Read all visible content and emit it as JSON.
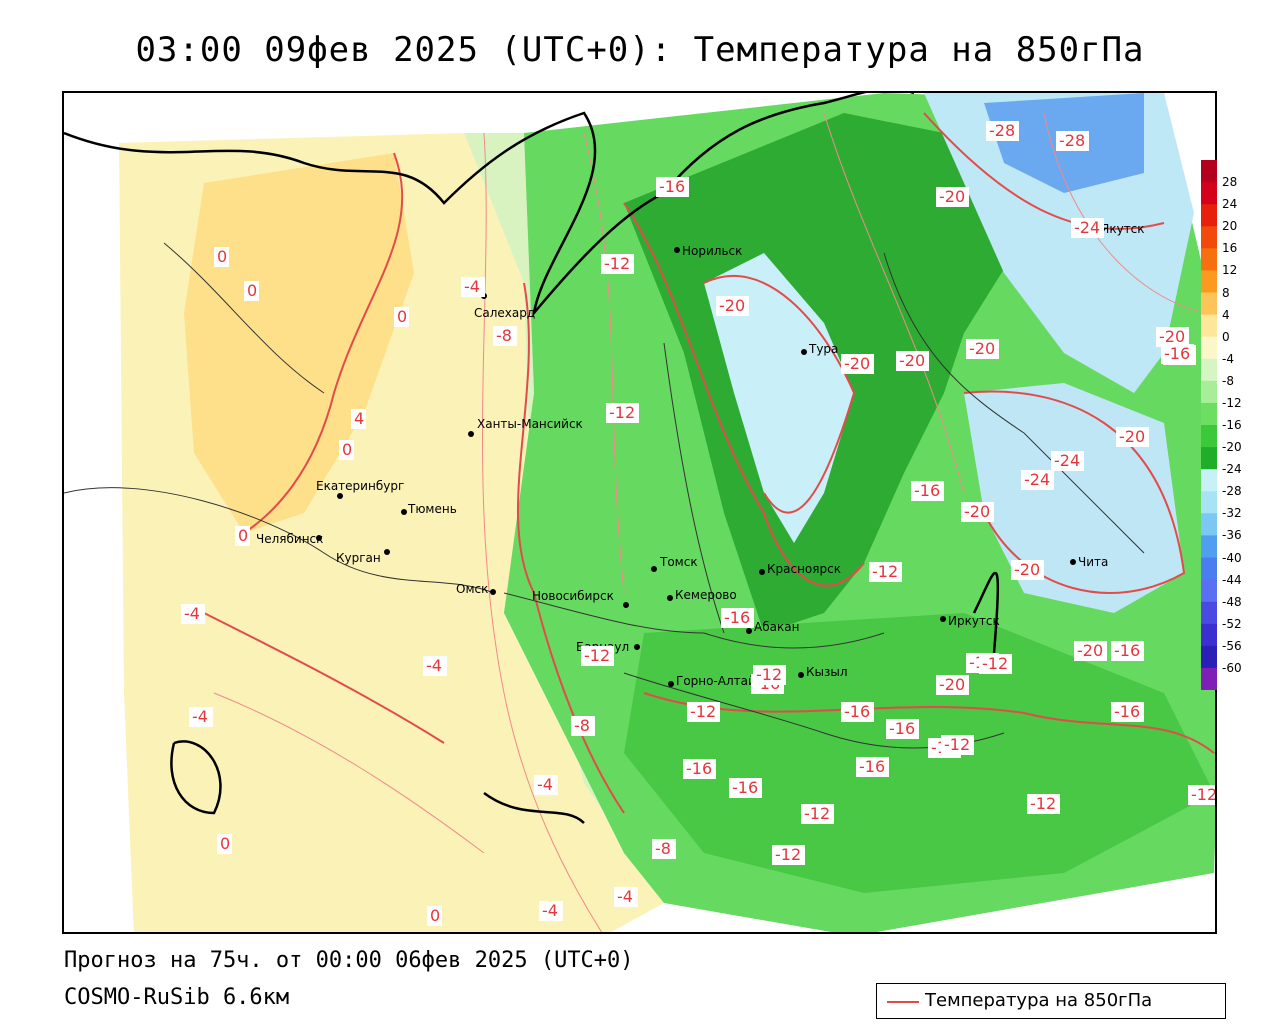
{
  "title": "03:00 09фев 2025 (UTC+0): Температура на 850гПа",
  "forecast": "Прогноз на 75ч. от 00:00 06фев 2025 (UTC+0)",
  "model": "COSMO-RuSib 6.6км",
  "legend": {
    "label": "Температура на 850гПа",
    "line_color": "#e34b4b"
  },
  "scale": {
    "labels": [
      "28",
      "24",
      "20",
      "16",
      "12",
      "8",
      "4",
      "0",
      "-4",
      "-8",
      "-12",
      "-16",
      "-20",
      "-24",
      "-28",
      "-32",
      "-36",
      "-40",
      "-44",
      "-48",
      "-52",
      "-56",
      "-60"
    ],
    "colors": [
      "#b3001e",
      "#d4001a",
      "#e6200a",
      "#f24a0a",
      "#f7700f",
      "#fb9a1e",
      "#fdc45a",
      "#fee79a",
      "#fbf7c9",
      "#d5f5c2",
      "#a8ee98",
      "#6cdf62",
      "#3bc93b",
      "#1fae2a",
      "#c7f0f7",
      "#a6e3f5",
      "#7cc8f2",
      "#4f9eef",
      "#4a7df0",
      "#5b6ff2",
      "#4a49e4",
      "#3b2fd1",
      "#2c1fb5",
      "#7f1fb5"
    ]
  },
  "cities": [
    {
      "name": "Норильск"
    },
    {
      "name": "Салехард"
    },
    {
      "name": "Тура"
    },
    {
      "name": "Якутск"
    },
    {
      "name": "Ханты-Мансийск"
    },
    {
      "name": "Екатеринбург"
    },
    {
      "name": "Тюмень"
    },
    {
      "name": "Челябинск"
    },
    {
      "name": "Курган"
    },
    {
      "name": "Омск"
    },
    {
      "name": "Томск"
    },
    {
      "name": "Красноярск"
    },
    {
      "name": "Новосибирск"
    },
    {
      "name": "Кемерово"
    },
    {
      "name": "Абакан"
    },
    {
      "name": "Барнаул"
    },
    {
      "name": "Иркутск"
    },
    {
      "name": "Чита"
    },
    {
      "name": "Кызыл"
    },
    {
      "name": "Горно-Алтайск"
    }
  ],
  "contour_labels": [
    "-28",
    "-28",
    "-24",
    "-20",
    "-16",
    "-12",
    "-20",
    "-20",
    "-20",
    "-20",
    "-20",
    "-16",
    "-20",
    "-4",
    "-8",
    "0",
    "0",
    "0",
    "4",
    "0",
    "0",
    "-12",
    "-16",
    "-20",
    "-24",
    "-24",
    "-20",
    "-16",
    "-12",
    "-12",
    "-16",
    "-4",
    "-4",
    "-4",
    "-12",
    "-16",
    "-20",
    "-16",
    "-12",
    "-16",
    "-16",
    "-12",
    "-8",
    "-16",
    "-12",
    "-4",
    "-16",
    "-16",
    "-12",
    "-12",
    "-12",
    "-12",
    "-8",
    "0",
    "-4",
    "-4",
    "0",
    "-20",
    "-16",
    "-16",
    "-12"
  ]
}
